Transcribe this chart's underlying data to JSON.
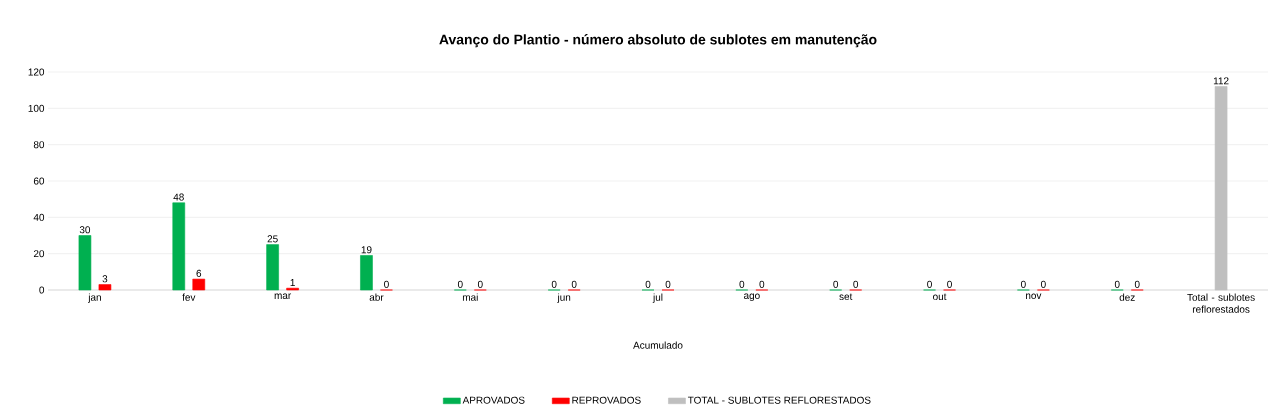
{
  "chart_data": {
    "type": "bar",
    "title": "Avanço do Plantio  - número absoluto de sublotes em manutenção",
    "xlabel": "Acumulado",
    "categories": [
      "jan",
      "fev",
      "mar",
      "abr",
      "mai",
      "jun",
      "jul",
      "ago",
      "set",
      "out",
      "nov",
      "dez",
      "Total - sublotes reflorestados"
    ],
    "series": [
      {
        "name": "APROVADOS",
        "color": "#00b050",
        "values": [
          30,
          48,
          25,
          19,
          0,
          0,
          0,
          0,
          0,
          0,
          0,
          0,
          null
        ]
      },
      {
        "name": "REPROVADOS",
        "color": "#ff0000",
        "values": [
          3,
          6,
          1,
          0,
          0,
          0,
          0,
          0,
          0,
          0,
          0,
          0,
          null
        ]
      },
      {
        "name": "TOTAL - SUBLOTES REFLORESTADOS",
        "color": "#bfbfbf",
        "values": [
          null,
          null,
          null,
          null,
          null,
          null,
          null,
          null,
          null,
          null,
          null,
          null,
          112
        ]
      }
    ],
    "ylim": [
      0,
      120
    ],
    "yticks": [
      0,
      20,
      40,
      60,
      80,
      100,
      120
    ],
    "grid": "y",
    "legend": "bottom",
    "data_labels": true
  }
}
